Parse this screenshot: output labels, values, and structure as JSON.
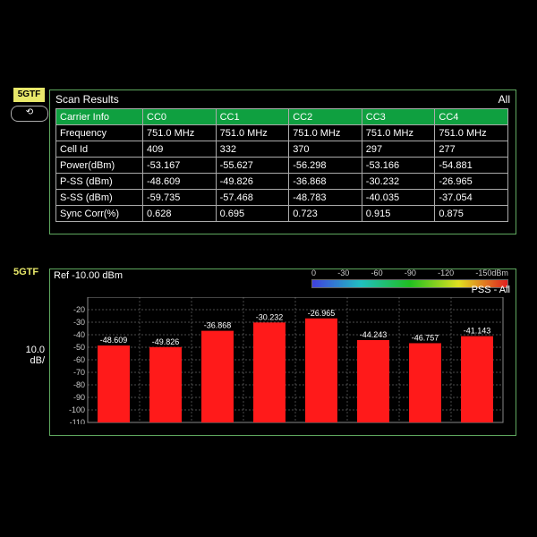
{
  "badges": {
    "mode": "5GTF",
    "arrow": "⟲"
  },
  "scan": {
    "title": "Scan Results",
    "all": "All",
    "columns": [
      "Carrier Info",
      "CC0",
      "CC1",
      "CC2",
      "CC3",
      "CC4"
    ],
    "rows": [
      {
        "label": "Frequency",
        "v": [
          "751.0 MHz",
          "751.0 MHz",
          "751.0 MHz",
          "751.0 MHz",
          "751.0 MHz"
        ]
      },
      {
        "label": "Cell Id",
        "v": [
          "409",
          "332",
          "370",
          "297",
          "277"
        ]
      },
      {
        "label": "Power(dBm)",
        "v": [
          "-53.167",
          "-55.627",
          "-56.298",
          "-53.166",
          "-54.881"
        ]
      },
      {
        "label": "P-SS (dBm)",
        "v": [
          "-48.609",
          "-49.826",
          "-36.868",
          "-30.232",
          "-26.965"
        ]
      },
      {
        "label": "S-SS (dBm)",
        "v": [
          "-59.735",
          "-57.468",
          "-48.783",
          "-40.035",
          "-37.054"
        ]
      },
      {
        "label": "Sync Corr(%)",
        "v": [
          "0.628",
          "0.695",
          "0.723",
          "0.915",
          "0.875"
        ]
      }
    ]
  },
  "chart": {
    "type": "bar",
    "ref_label": "Ref -10.00  dBm",
    "mode_tag": "5GTF",
    "pss_label": "PSS - All",
    "y_per_div": "10.0\ndB/",
    "ylim": [
      -110,
      -10
    ],
    "ytick_step": 10,
    "legend_ticks": [
      "0",
      "-30",
      "-60",
      "-90",
      "-120",
      "-150dBm"
    ],
    "bar_color": "#ff1a1a",
    "grid_color": "#666666",
    "bg": "#000000",
    "labels": [
      "-48.609",
      "-49.826",
      "-36.868",
      "-30.232",
      "-26.965",
      "-44.243",
      "-46.757",
      "-41.143"
    ],
    "values": [
      -48.609,
      -49.826,
      -36.868,
      -30.232,
      -26.965,
      -44.243,
      -46.757,
      -41.143
    ]
  }
}
